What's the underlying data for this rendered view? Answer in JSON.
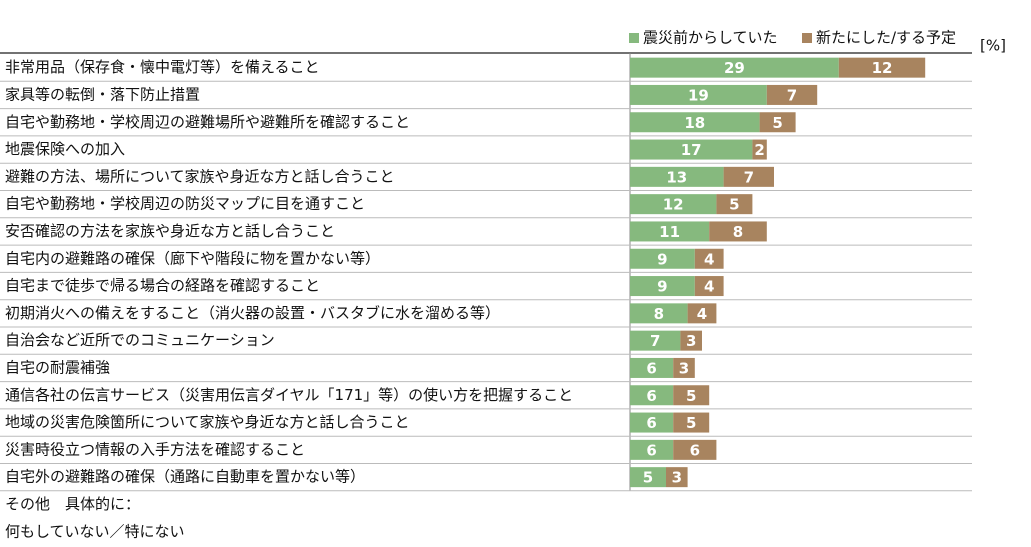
{
  "chart_data": {
    "type": "stacked-barh",
    "unit": "[%]",
    "categories": [
      "非常用品（保存食・懐中電灯等）を備えること",
      "家具等の転倒・落下防止措置",
      "自宅や勤務地・学校周辺の避難場所や避難所を確認すること",
      "地震保険への加入",
      "避難の方法、場所について家族や身近な方と話し合うこと",
      "自宅や勤務地・学校周辺の防災マップに目を通すこと",
      "安否確認の方法を家族や身近な方と話し合うこと",
      "自宅内の避難路の確保（廊下や階段に物を置かない等）",
      "自宅まで徒歩で帰る場合の経路を確認すること",
      "初期消火への備えをすること（消火器の設置・バスタブに水を溜める等）",
      "自治会など近所でのコミュニケーション",
      "自宅の耐震補強",
      "通信各社の伝言サービス（災害用伝言ダイヤル「171」等）の使い方を把握すること",
      "地域の災害危険箇所について家族や身近な方と話し合うこと",
      "災害時役立つ情報の入手方法を確認すること",
      "自宅外の避難路の確保（通路に自動車を置かない等）",
      "その他　具体的に：",
      "何もしていない／特にない"
    ],
    "series": [
      {
        "name": "震災前からしていた",
        "color": "#86b97e",
        "values": [
          29,
          19,
          18,
          17,
          13,
          12,
          11,
          9,
          9,
          8,
          7,
          6,
          6,
          6,
          6,
          5,
          null,
          null
        ]
      },
      {
        "name": "新たにした/する予定",
        "color": "#a8845f",
        "values": [
          12,
          7,
          5,
          2,
          7,
          5,
          8,
          4,
          4,
          4,
          3,
          3,
          5,
          5,
          6,
          3,
          null,
          null
        ]
      }
    ]
  }
}
